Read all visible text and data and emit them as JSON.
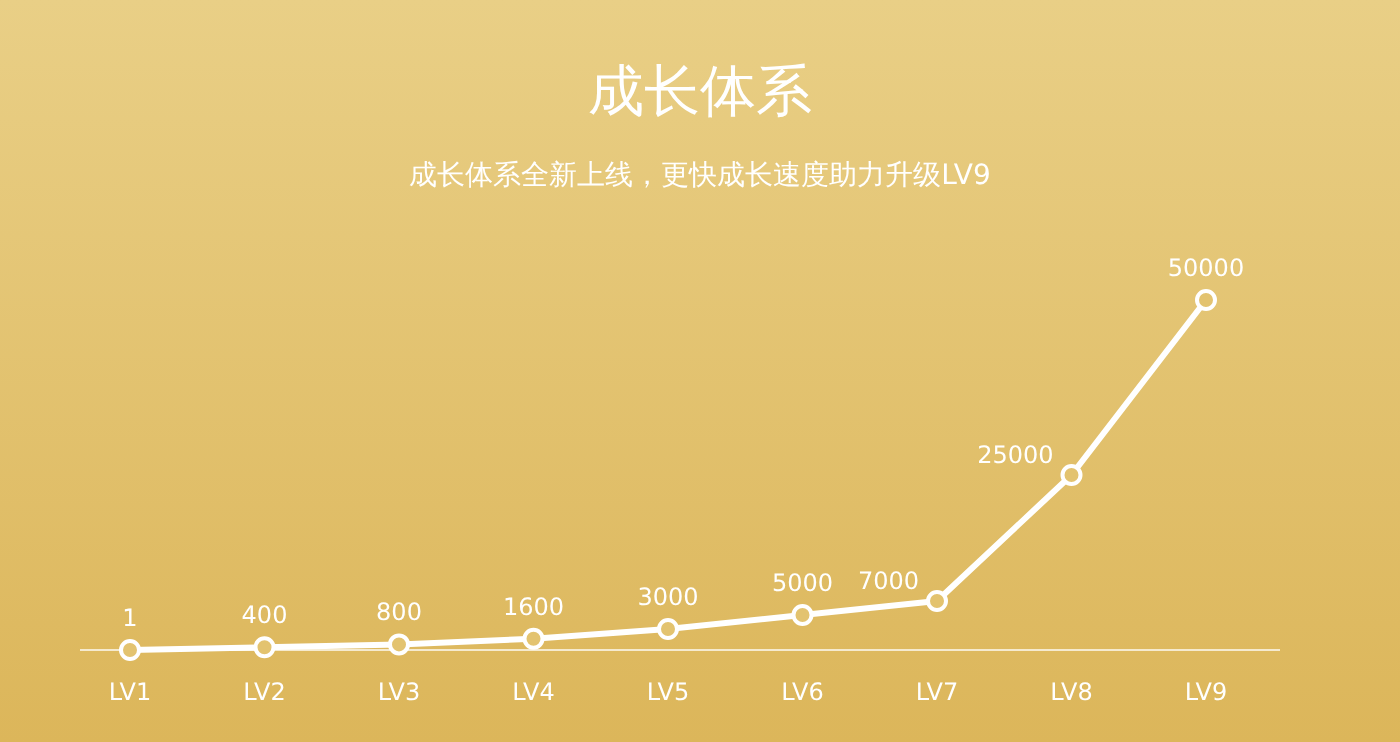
{
  "chart_data": {
    "type": "line",
    "title": "成长体系",
    "subtitle": "成长体系全新上线，更快成长速度助力升级LV9",
    "categories": [
      "LV1",
      "LV2",
      "LV3",
      "LV4",
      "LV5",
      "LV6",
      "LV7",
      "LV8",
      "LV9"
    ],
    "series": [
      {
        "color": "#ffffff",
        "values": [
          1,
          400,
          800,
          1600,
          3000,
          5000,
          7000,
          25000,
          50000
        ]
      }
    ],
    "data_labels": true,
    "marker": "circle",
    "line_style": "solid"
  }
}
